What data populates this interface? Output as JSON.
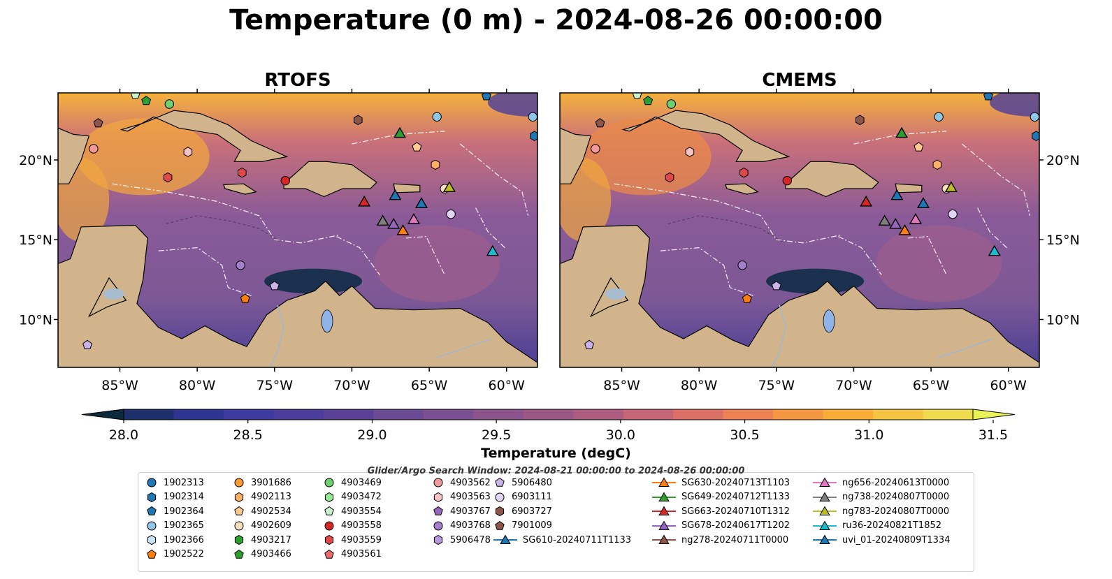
{
  "title": "Temperature (0 m) - 2024-08-26 00:00:00",
  "panels": [
    {
      "title": "RTOFS"
    },
    {
      "title": "CMEMS"
    }
  ],
  "axes": {
    "x_ticks": [
      "85°W",
      "80°W",
      "75°W",
      "70°W",
      "65°W",
      "60°W"
    ],
    "x_values": [
      -85,
      -80,
      -75,
      -70,
      -65,
      -60
    ],
    "y_ticks": [
      "20°N",
      "15°N",
      "10°N"
    ],
    "y_values": [
      20,
      15,
      10
    ],
    "lon_range": [
      -89,
      -58
    ],
    "lat_range": [
      7,
      24.2
    ]
  },
  "colorbar": {
    "label": "Temperature (degC)",
    "ticks": [
      "28.0",
      "28.5",
      "29.0",
      "29.5",
      "30.0",
      "30.5",
      "31.0",
      "31.5"
    ],
    "tick_values": [
      28.0,
      28.5,
      29.0,
      29.5,
      30.0,
      30.5,
      31.0,
      31.5
    ],
    "range": [
      27.75,
      31.75
    ],
    "colors": [
      "#0b2a3c",
      "#1c2f6a",
      "#2e3591",
      "#3d3aa0",
      "#4c3d9c",
      "#5a4196",
      "#6a4a93",
      "#7b4f91",
      "#8c548c",
      "#9b5887",
      "#ad5d80",
      "#c46676",
      "#dd7066",
      "#ec8153",
      "#f59640",
      "#f8ad39",
      "#f5c442",
      "#f0da4e",
      "#e9f256"
    ]
  },
  "search_window": "Glider/Argo Search Window: 2024-08-21 00:00:00 to 2024-08-26 00:00:00",
  "legend": {
    "columns": [
      [
        {
          "label": "1902313",
          "color": "#1f77b4",
          "shape": "circle"
        },
        {
          "label": "1902314",
          "color": "#1f77b4",
          "shape": "hexagon"
        },
        {
          "label": "1902364",
          "color": "#1f77b4",
          "shape": "pentagon"
        },
        {
          "label": "1902365",
          "color": "#8ec7e8",
          "shape": "circle"
        },
        {
          "label": "1902366",
          "color": "#c6e3f7",
          "shape": "hexagon"
        },
        {
          "label": "1902522",
          "color": "#ff7f0e",
          "shape": "pentagon"
        }
      ],
      [
        {
          "label": "3901686",
          "color": "#ff9933",
          "shape": "circle"
        },
        {
          "label": "4902113",
          "color": "#ffb066",
          "shape": "hexagon"
        },
        {
          "label": "4902534",
          "color": "#ffc98f",
          "shape": "pentagon"
        },
        {
          "label": "4902609",
          "color": "#ffe0bd",
          "shape": "circle"
        },
        {
          "label": "4903217",
          "color": "#2ca02c",
          "shape": "hexagon"
        },
        {
          "label": "4903466",
          "color": "#2ca02c",
          "shape": "pentagon"
        }
      ],
      [
        {
          "label": "4903469",
          "color": "#6fcf6f",
          "shape": "circle"
        },
        {
          "label": "4903472",
          "color": "#98e698",
          "shape": "hexagon"
        },
        {
          "label": "4903554",
          "color": "#ccf5cc",
          "shape": "pentagon"
        },
        {
          "label": "4903558",
          "color": "#d62728",
          "shape": "circle"
        },
        {
          "label": "4903559",
          "color": "#e04848",
          "shape": "hexagon"
        },
        {
          "label": "4903561",
          "color": "#ea6b6b",
          "shape": "pentagon"
        }
      ],
      [
        {
          "label": "4903562",
          "color": "#f29a9a",
          "shape": "circle"
        },
        {
          "label": "4903563",
          "color": "#f7c4c4",
          "shape": "hexagon"
        },
        {
          "label": "4903767",
          "color": "#9467bd",
          "shape": "pentagon"
        },
        {
          "label": "4903768",
          "color": "#a57fcc",
          "shape": "circle"
        },
        {
          "label": "5906478",
          "color": "#b899dd",
          "shape": "hexagon"
        }
      ],
      [
        {
          "label": "5906480",
          "color": "#cbb3ea",
          "shape": "pentagon"
        },
        {
          "label": "6903111",
          "color": "#e2d4f5",
          "shape": "circle"
        },
        {
          "label": "6903727",
          "color": "#8c564b",
          "shape": "hexagon"
        },
        {
          "label": "7901009",
          "color": "#8c564b",
          "shape": "pentagon"
        },
        {
          "label": "SG610-20240711T1133",
          "color": "#1f77b4",
          "shape": "triangle",
          "line": true
        }
      ],
      [
        {
          "label": "SG630-20240713T1103",
          "color": "#ff7f0e",
          "shape": "triangle",
          "line": true
        },
        {
          "label": "SG649-20240712T1133",
          "color": "#2ca02c",
          "shape": "triangle",
          "line": true
        },
        {
          "label": "SG663-20240710T1312",
          "color": "#d62728",
          "shape": "triangle",
          "line": true
        },
        {
          "label": "SG678-20240617T1202",
          "color": "#9467bd",
          "shape": "triangle",
          "line": true
        },
        {
          "label": "ng278-20240711T0000",
          "color": "#8c564b",
          "shape": "triangle",
          "line": true
        }
      ],
      [
        {
          "label": "ng656-20240613T0000",
          "color": "#e377c2",
          "shape": "triangle",
          "line": true
        },
        {
          "label": "ng738-20240807T0000",
          "color": "#7f7f7f",
          "shape": "triangle",
          "line": true
        },
        {
          "label": "ng783-20240807T0000",
          "color": "#bcbd22",
          "shape": "triangle",
          "line": true
        },
        {
          "label": "ru36-20240821T1852",
          "color": "#17becf",
          "shape": "triangle",
          "line": true
        },
        {
          "label": "uvi_01-20240809T1334",
          "color": "#1f77b4",
          "shape": "triangle",
          "line": true
        }
      ]
    ]
  },
  "chart_data": {
    "type": "heatmap",
    "title": "Temperature (0 m) - 2024-08-26 00:00:00",
    "panels": [
      "RTOFS",
      "CMEMS"
    ],
    "xlabel": "",
    "ylabel": "",
    "xlim": [
      -89,
      -58
    ],
    "ylim": [
      7,
      24.2
    ],
    "colorbar_label": "Temperature (degC)",
    "colorbar_range": [
      28.0,
      31.5
    ],
    "markers": [
      {
        "name": "1902365",
        "lon": -64.5,
        "lat": 22.7,
        "shape": "circle",
        "color": "#8ec7e8"
      },
      {
        "name": "1902365",
        "lon": -58.3,
        "lat": 22.7,
        "shape": "circle",
        "color": "#8ec7e8"
      },
      {
        "name": "1902314",
        "lon": -58.2,
        "lat": 21.5,
        "shape": "hexagon",
        "color": "#1f77b4"
      },
      {
        "name": "1902364",
        "lon": -61.3,
        "lat": 24.0,
        "shape": "pentagon",
        "color": "#1f77b4"
      },
      {
        "name": "4903554",
        "lon": -84.0,
        "lat": 24.1,
        "shape": "pentagon",
        "color": "#ccf5cc"
      },
      {
        "name": "4903466",
        "lon": -83.3,
        "lat": 23.7,
        "shape": "pentagon",
        "color": "#2ca02c"
      },
      {
        "name": "4903469",
        "lon": -81.8,
        "lat": 23.5,
        "shape": "circle",
        "color": "#6fcf6f"
      },
      {
        "name": "7901009",
        "lon": -86.4,
        "lat": 22.3,
        "shape": "pentagon",
        "color": "#8c564b"
      },
      {
        "name": "6903727",
        "lon": -69.6,
        "lat": 22.5,
        "shape": "hexagon",
        "color": "#8c564b"
      },
      {
        "name": "4903562",
        "lon": -86.7,
        "lat": 20.7,
        "shape": "circle",
        "color": "#f29a9a"
      },
      {
        "name": "4903563",
        "lon": -80.6,
        "lat": 20.5,
        "shape": "hexagon",
        "color": "#f7c4c4"
      },
      {
        "name": "4902534",
        "lon": -65.8,
        "lat": 20.8,
        "shape": "pentagon",
        "color": "#ffc98f"
      },
      {
        "name": "4903559",
        "lon": -77.1,
        "lat": 19.2,
        "shape": "hexagon",
        "color": "#e04848"
      },
      {
        "name": "4903559",
        "lon": -81.9,
        "lat": 18.9,
        "shape": "hexagon",
        "color": "#e04848"
      },
      {
        "name": "4903558",
        "lon": -74.3,
        "lat": 18.7,
        "shape": "circle",
        "color": "#d62728"
      },
      {
        "name": "4902113",
        "lon": -64.6,
        "lat": 19.7,
        "shape": "hexagon",
        "color": "#ffb066"
      },
      {
        "name": "4902609",
        "lon": -64.0,
        "lat": 18.2,
        "shape": "circle",
        "color": "#ffe0bd"
      },
      {
        "name": "6903111",
        "lon": -63.6,
        "lat": 16.6,
        "shape": "circle",
        "color": "#e2d4f5"
      },
      {
        "name": "4903768",
        "lon": -77.2,
        "lat": 13.4,
        "shape": "circle",
        "color": "#a57fcc"
      },
      {
        "name": "5906480",
        "lon": -75.0,
        "lat": 12.1,
        "shape": "pentagon",
        "color": "#cbb3ea"
      },
      {
        "name": "1902522",
        "lon": -76.9,
        "lat": 11.3,
        "shape": "pentagon",
        "color": "#ff7f0e"
      },
      {
        "name": "5906480",
        "lon": -87.1,
        "lat": 8.4,
        "shape": "pentagon",
        "color": "#cbb3ea"
      },
      {
        "name": "SG649-20240712T1133",
        "lon": -66.9,
        "lat": 21.7,
        "shape": "triangle",
        "color": "#2ca02c"
      },
      {
        "name": "ng783-20240807T0000",
        "lon": -63.7,
        "lat": 18.3,
        "shape": "triangle",
        "color": "#bcbd22"
      },
      {
        "name": "SG610-20240711T1133",
        "lon": -67.2,
        "lat": 17.8,
        "shape": "triangle",
        "color": "#1f77b4"
      },
      {
        "name": "SG663-20240710T1312",
        "lon": -69.2,
        "lat": 17.4,
        "shape": "triangle",
        "color": "#d62728"
      },
      {
        "name": "uvi_01-20240809T1334",
        "lon": -65.5,
        "lat": 17.3,
        "shape": "triangle",
        "color": "#1f77b4"
      },
      {
        "name": "ng656-20240613T0000",
        "lon": -66.0,
        "lat": 16.3,
        "shape": "triangle",
        "color": "#e377c2"
      },
      {
        "name": "ng738-20240807T0000",
        "lon": -68.0,
        "lat": 16.2,
        "shape": "triangle",
        "color": "#7f7f7f"
      },
      {
        "name": "SG678-20240617T1202",
        "lon": -67.3,
        "lat": 16.0,
        "shape": "triangle",
        "color": "#9467bd"
      },
      {
        "name": "SG630-20240713T1103",
        "lon": -66.7,
        "lat": 15.6,
        "shape": "triangle",
        "color": "#ff7f0e"
      },
      {
        "name": "ru36-20240821T1852",
        "lon": -60.9,
        "lat": 14.3,
        "shape": "triangle",
        "color": "#17becf"
      }
    ]
  }
}
